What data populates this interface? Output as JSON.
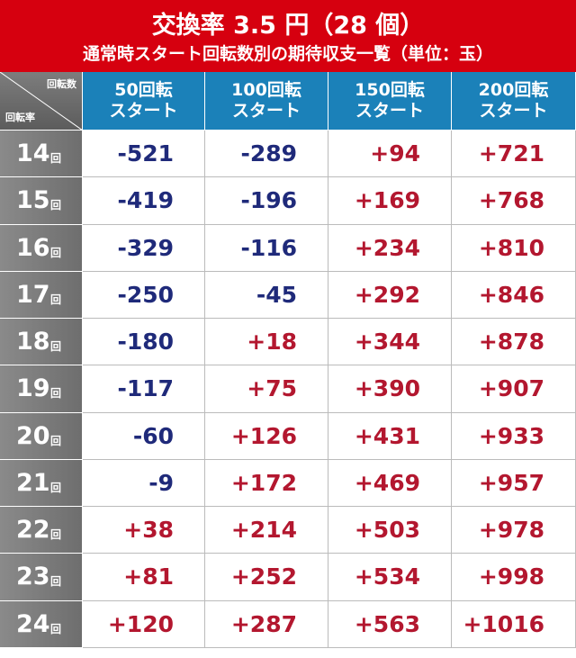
{
  "header": {
    "title": "交換率 3.5 円（28 個）",
    "subtitle": "通常時スタート回転数別の期待収支一覧（単位：玉）"
  },
  "table": {
    "corner_top": "回転数",
    "corner_bottom": "回転率",
    "columns": [
      [
        "50回転",
        "スタート"
      ],
      [
        "100回転",
        "スタート"
      ],
      [
        "150回転",
        "スタート"
      ],
      [
        "200回転",
        "スタート"
      ]
    ],
    "row_unit": "回",
    "row_labels": [
      "14",
      "15",
      "16",
      "17",
      "18",
      "19",
      "20",
      "21",
      "22",
      "23",
      "24"
    ],
    "rows": [
      [
        "-521",
        "-289",
        "+94",
        "+721"
      ],
      [
        "-419",
        "-196",
        "+169",
        "+768"
      ],
      [
        "-329",
        "-116",
        "+234",
        "+810"
      ],
      [
        "-250",
        "-45",
        "+292",
        "+846"
      ],
      [
        "-180",
        "+18",
        "+344",
        "+878"
      ],
      [
        "-117",
        "+75",
        "+390",
        "+907"
      ],
      [
        "-60",
        "+126",
        "+431",
        "+933"
      ],
      [
        "-9",
        "+172",
        "+469",
        "+957"
      ],
      [
        "+38",
        "+214",
        "+503",
        "+978"
      ],
      [
        "+81",
        "+252",
        "+534",
        "+998"
      ],
      [
        "+120",
        "+287",
        "+563",
        "+1016"
      ]
    ],
    "negative_color": "#1f2a7a",
    "positive_color": "#b3172f"
  }
}
